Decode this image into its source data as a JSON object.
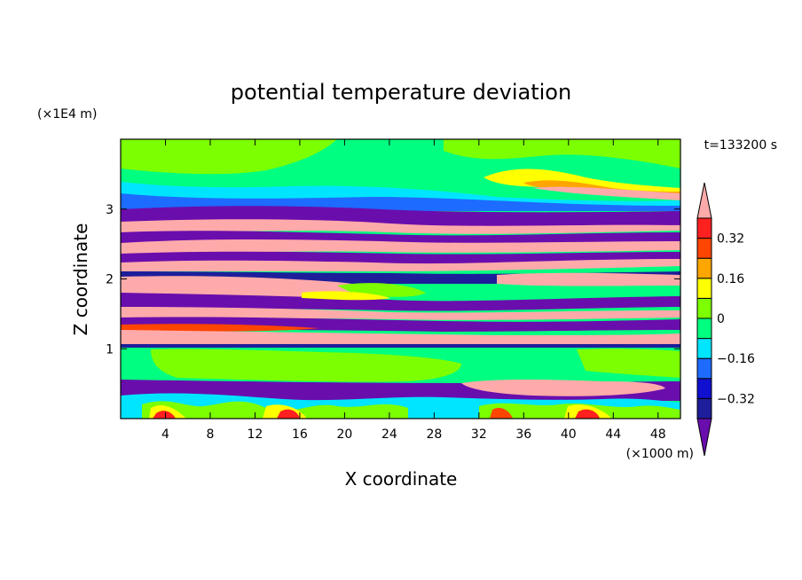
{
  "chart_data": {
    "type": "heatmap",
    "title": "potential temperature deviation",
    "xlabel": "X coordinate",
    "ylabel": "Z coordinate",
    "x_unit": "(×1000 m)",
    "y_unit": "(×1E4 m)",
    "time_label": "t=133200 s",
    "xlim": [
      0,
      50
    ],
    "ylim": [
      0,
      4
    ],
    "x_ticks": [
      "4",
      "8",
      "12",
      "16",
      "20",
      "24",
      "28",
      "32",
      "36",
      "40",
      "44",
      "48"
    ],
    "y_ticks": [
      "1",
      "2",
      "3"
    ],
    "colorbar": {
      "levels": [
        -0.4,
        -0.32,
        -0.24,
        -0.16,
        -0.08,
        0,
        0.08,
        0.16,
        0.24,
        0.32,
        0.4
      ],
      "labels": [
        "0.32",
        "0.16",
        "0",
        "−0.16",
        "−0.32"
      ],
      "colors": [
        "#6a0dad",
        "#1e1e9a",
        "#1010d0",
        "#1e6bff",
        "#00e5ff",
        "#00ff80",
        "#7cff00",
        "#ffff00",
        "#ffa500",
        "#ff4500",
        "#ff2020",
        "#ffaaaa"
      ],
      "extend": "both"
    }
  }
}
